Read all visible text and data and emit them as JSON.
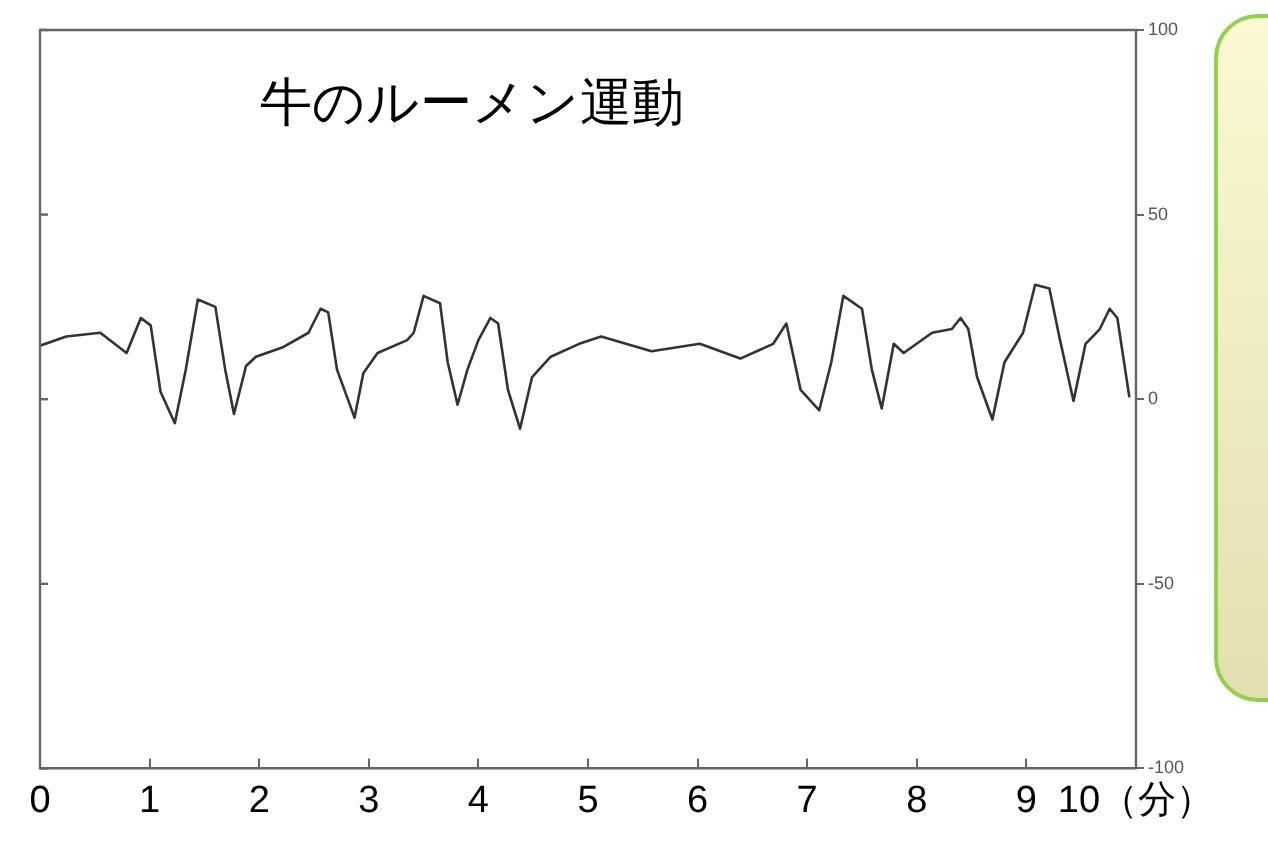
{
  "chart_data": {
    "type": "line",
    "title": "牛のルーメン運動",
    "xlim": [
      0,
      10
    ],
    "xticks": [
      0,
      1,
      2,
      3,
      4,
      5,
      6,
      7,
      8,
      9,
      {
        "value": 10,
        "label": "10（分）"
      }
    ],
    "ylim": [
      -100,
      100
    ],
    "yticks": [
      -100,
      -50,
      0,
      50,
      100
    ],
    "marker": "none",
    "series": [
      {
        "color": "#333333",
        "x": [
          0,
          0.24,
          0.55,
          0.79,
          0.92,
          1.01,
          1.1,
          1.23,
          1.33,
          1.44,
          1.6,
          1.69,
          1.77,
          1.88,
          1.97,
          2.21,
          2.45,
          2.56,
          2.63,
          2.71,
          2.87,
          2.95,
          3.08,
          3.35,
          3.41,
          3.5,
          3.65,
          3.72,
          3.81,
          3.9,
          4.0,
          4.11,
          4.18,
          4.27,
          4.38,
          4.49,
          4.66,
          4.92,
          5.12,
          5.58,
          6.02,
          6.39,
          6.69,
          6.81,
          6.94,
          7.11,
          7.22,
          7.33,
          7.5,
          7.59,
          7.68,
          7.79,
          7.88,
          8.14,
          8.32,
          8.4,
          8.47,
          8.55,
          8.69,
          8.8,
          8.97,
          9.08,
          9.21,
          9.3,
          9.43,
          9.54,
          9.67,
          9.76,
          9.83,
          9.94
        ],
        "values": [
          14.5,
          17,
          18,
          12.5,
          22,
          20,
          2,
          -6.5,
          8,
          27,
          25,
          8,
          -4,
          9,
          11.5,
          14,
          18,
          24.5,
          23.5,
          8,
          -5,
          7,
          12.5,
          16,
          18,
          28,
          26,
          10,
          -1.5,
          8,
          16,
          22,
          20.5,
          2.5,
          -8,
          6,
          11.5,
          15,
          17,
          13,
          15,
          11,
          15,
          20.5,
          2.5,
          -3,
          10,
          28,
          24.5,
          8,
          -2.5,
          15,
          12.5,
          18,
          19,
          22,
          19,
          6,
          -5.5,
          10,
          18,
          31,
          30,
          17,
          -0.5,
          15,
          19,
          24.5,
          22,
          0.5
        ]
      }
    ]
  }
}
